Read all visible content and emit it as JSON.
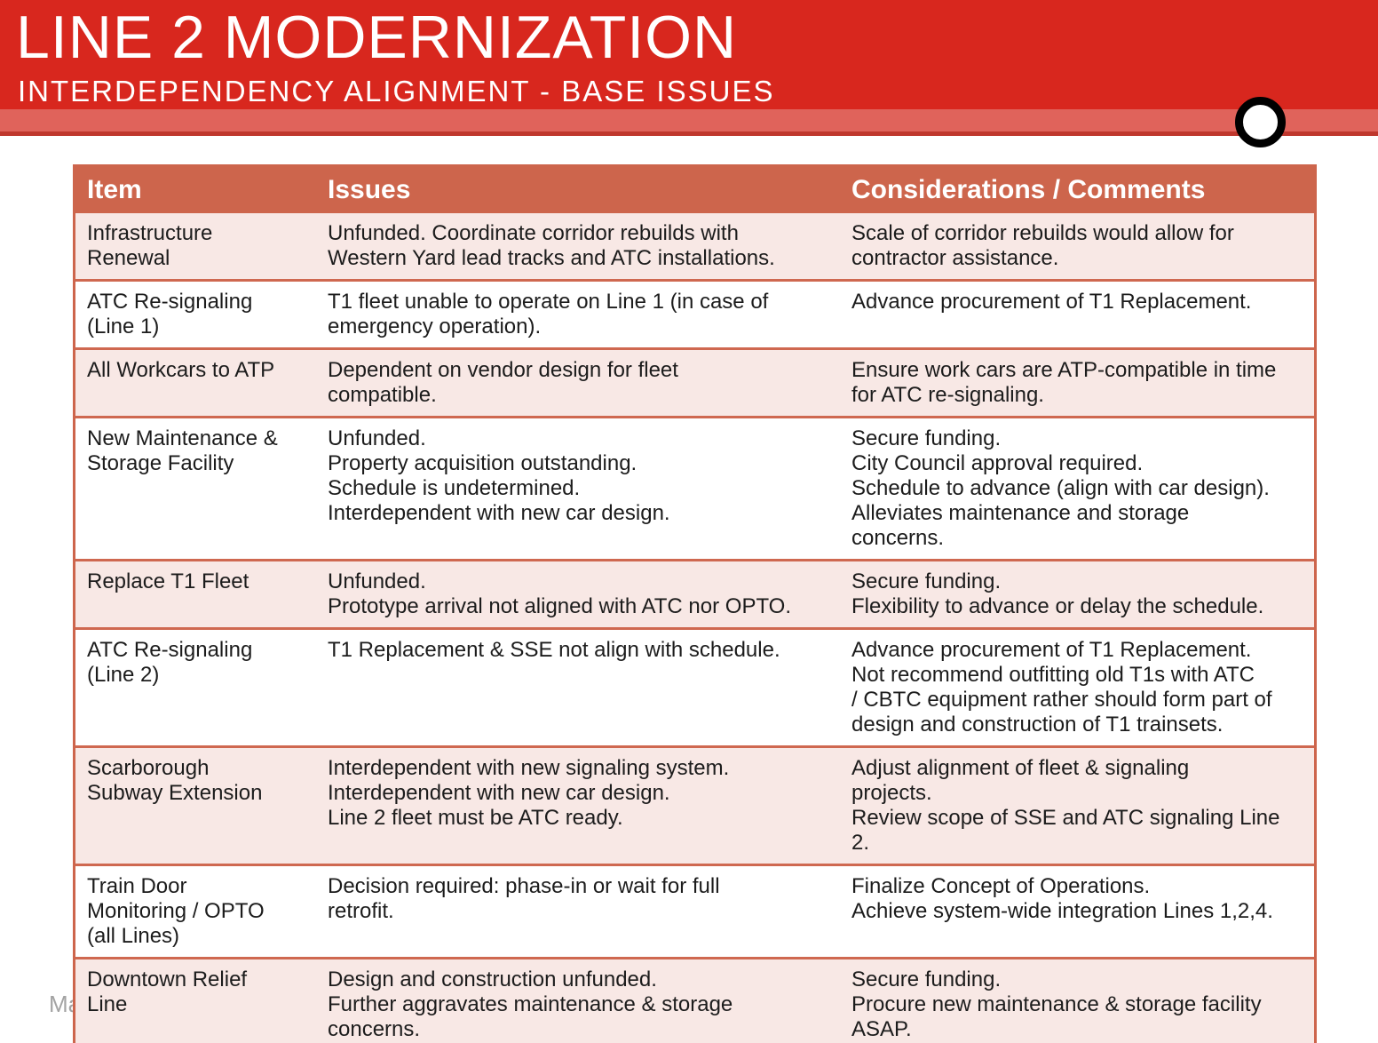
{
  "header": {
    "title": "LINE 2 MODERNIZATION",
    "subtitle": "INTERDEPENDENCY ALIGNMENT - BASE ISSUES"
  },
  "decorations": {
    "circle_icon": "white-circle-black-ring"
  },
  "footer": {
    "date_partial": "Ma"
  },
  "colors": {
    "banner_red": "#d8271e",
    "banner_light_red": "#e0635b",
    "banner_dark_line": "#bf372d",
    "table_header_bg": "#cd654c",
    "row_pink": "#f8e8e5",
    "row_white": "#ffffff",
    "border_salmon": "#cf6850",
    "body_text": "#1c1c1c",
    "footer_gray": "#a3a3a3"
  },
  "table": {
    "columns": [
      "Item",
      "Issues",
      "Considerations / Comments"
    ],
    "rows": [
      {
        "item": "Infrastructure\nRenewal",
        "issues": "Unfunded. Coordinate corridor rebuilds with\nWestern Yard lead tracks and ATC installations.",
        "considerations": "Scale of corridor rebuilds would allow for\ncontractor assistance."
      },
      {
        "item": "ATC Re-signaling\n(Line 1)",
        "issues": "T1 fleet unable to operate on Line 1 (in case of\nemergency operation).",
        "considerations": "Advance procurement of T1 Replacement."
      },
      {
        "item": "All Workcars to ATP",
        "issues": "Dependent on vendor design for fleet\ncompatible.",
        "considerations": "Ensure work cars are ATP-compatible in time\nfor ATC re-signaling."
      },
      {
        "item": "New Maintenance &\nStorage Facility",
        "issues": "Unfunded.\nProperty acquisition outstanding.\nSchedule is undetermined.\nInterdependent with new car design.",
        "considerations": "Secure funding.\nCity Council approval required.\nSchedule to advance (align with car design).\nAlleviates maintenance and storage\nconcerns."
      },
      {
        "item": "Replace T1 Fleet",
        "issues": "Unfunded.\nPrototype arrival not aligned with ATC nor OPTO.",
        "considerations": "Secure funding.\nFlexibility to advance or delay the schedule."
      },
      {
        "item": "ATC Re-signaling\n(Line 2)",
        "issues": "T1 Replacement & SSE not align with schedule.",
        "considerations": "Advance procurement of T1 Replacement.\nNot recommend outfitting  old T1s with ATC\n/ CBTC equipment rather should form part of\ndesign and construction of T1 trainsets."
      },
      {
        "item": "Scarborough\nSubway Extension",
        "issues": "Interdependent with new signaling system.\nInterdependent with new car design.\nLine 2 fleet must be ATC ready.",
        "considerations": "Adjust alignment of fleet & signaling\nprojects.\nReview scope of SSE and ATC signaling Line\n2."
      },
      {
        "item": "Train Door\nMonitoring / OPTO\n(all Lines)",
        "issues": "Decision required: phase-in or wait for full\nretrofit.",
        "considerations": "Finalize Concept of Operations.\nAchieve system-wide integration Lines 1,2,4."
      },
      {
        "item": "Downtown Relief\nLine",
        "issues": "Design and construction unfunded.\nFurther aggravates maintenance & storage\nconcerns.",
        "considerations": "Secure funding.\nProcure new maintenance & storage facility\nASAP."
      }
    ]
  }
}
